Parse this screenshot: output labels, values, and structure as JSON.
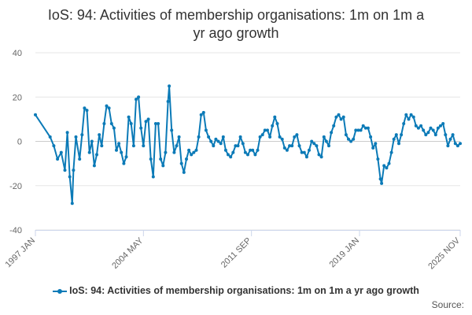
{
  "chart_data": {
    "type": "line",
    "title_lines": [
      "IoS: 94: Activities of membership organisations: 1m on 1m a",
      "yr ago growth"
    ],
    "ylim": [
      -40,
      40
    ],
    "yticks": [
      -40,
      -20,
      0,
      20,
      40
    ],
    "xrange": [
      "1997-01",
      "2025-11"
    ],
    "xticks": [
      {
        "label": "1997 JAN",
        "x": "1997-01"
      },
      {
        "label": "2004 MAY",
        "x": "2004-05"
      },
      {
        "label": "2011 SEP",
        "x": "2011-09"
      },
      {
        "label": "2019 JAN",
        "x": "2019-01"
      },
      {
        "label": "2025 NOV",
        "x": "2025-11"
      }
    ],
    "grid": true,
    "legend_position": "bottom",
    "series": [
      {
        "name": "IoS: 94: Activities of membership organisations: 1m on 1m a yr ago growth",
        "color": "#0b7ab7",
        "points": [
          [
            "1997-01",
            12
          ],
          [
            "1998-01",
            2
          ],
          [
            "1998-04",
            -2
          ],
          [
            "1998-07",
            -8
          ],
          [
            "1998-10",
            -5
          ],
          [
            "1999-01",
            -13
          ],
          [
            "1999-03",
            4
          ],
          [
            "1999-05",
            -16
          ],
          [
            "1999-07",
            -28
          ],
          [
            "1999-08",
            -13
          ],
          [
            "1999-10",
            2
          ],
          [
            "2000-01",
            -8
          ],
          [
            "2000-03",
            3
          ],
          [
            "2000-05",
            15
          ],
          [
            "2000-07",
            14
          ],
          [
            "2000-09",
            -5
          ],
          [
            "2000-11",
            0
          ],
          [
            "2001-01",
            -11
          ],
          [
            "2001-03",
            -6
          ],
          [
            "2001-05",
            3
          ],
          [
            "2001-07",
            -2
          ],
          [
            "2001-09",
            8
          ],
          [
            "2001-11",
            16
          ],
          [
            "2002-01",
            15
          ],
          [
            "2002-03",
            8
          ],
          [
            "2002-05",
            6
          ],
          [
            "2002-07",
            -4
          ],
          [
            "2002-09",
            -1
          ],
          [
            "2002-11",
            -5
          ],
          [
            "2003-01",
            -10
          ],
          [
            "2003-03",
            -7
          ],
          [
            "2003-05",
            11
          ],
          [
            "2003-07",
            8
          ],
          [
            "2003-09",
            -2
          ],
          [
            "2003-11",
            19
          ],
          [
            "2004-01",
            20
          ],
          [
            "2004-03",
            6
          ],
          [
            "2004-05",
            -2
          ],
          [
            "2004-07",
            9
          ],
          [
            "2004-09",
            10
          ],
          [
            "2004-11",
            -8
          ],
          [
            "2005-01",
            -16
          ],
          [
            "2005-03",
            8
          ],
          [
            "2005-05",
            8
          ],
          [
            "2005-07",
            -8
          ],
          [
            "2005-09",
            -11
          ],
          [
            "2005-11",
            -5
          ],
          [
            "2006-01",
            18
          ],
          [
            "2006-02",
            25
          ],
          [
            "2006-04",
            5
          ],
          [
            "2006-06",
            -5
          ],
          [
            "2006-08",
            -2
          ],
          [
            "2006-10",
            2
          ],
          [
            "2006-12",
            -10
          ],
          [
            "2007-02",
            -14
          ],
          [
            "2007-04",
            -8
          ],
          [
            "2007-06",
            -4
          ],
          [
            "2007-08",
            -6
          ],
          [
            "2007-10",
            -5
          ],
          [
            "2007-12",
            -4
          ],
          [
            "2008-02",
            2
          ],
          [
            "2008-04",
            12
          ],
          [
            "2008-06",
            13
          ],
          [
            "2008-08",
            5
          ],
          [
            "2008-10",
            2
          ],
          [
            "2008-12",
            0
          ],
          [
            "2009-02",
            -2
          ],
          [
            "2009-04",
            1
          ],
          [
            "2009-06",
            0
          ],
          [
            "2009-08",
            -1
          ],
          [
            "2009-10",
            2
          ],
          [
            "2009-12",
            -4
          ],
          [
            "2010-02",
            -6
          ],
          [
            "2010-04",
            -7
          ],
          [
            "2010-06",
            -5
          ],
          [
            "2010-08",
            -2
          ],
          [
            "2010-10",
            -2
          ],
          [
            "2010-12",
            2
          ],
          [
            "2011-02",
            -1
          ],
          [
            "2011-04",
            -5
          ],
          [
            "2011-06",
            -6
          ],
          [
            "2011-08",
            -4
          ],
          [
            "2011-10",
            -4
          ],
          [
            "2011-12",
            -6
          ],
          [
            "2012-02",
            -4
          ],
          [
            "2012-04",
            2
          ],
          [
            "2012-06",
            3
          ],
          [
            "2012-08",
            5
          ],
          [
            "2012-10",
            5
          ],
          [
            "2012-12",
            2
          ],
          [
            "2013-02",
            7
          ],
          [
            "2013-04",
            11
          ],
          [
            "2013-06",
            8
          ],
          [
            "2013-08",
            2
          ],
          [
            "2013-10",
            1
          ],
          [
            "2013-12",
            -3
          ],
          [
            "2014-02",
            -4
          ],
          [
            "2014-04",
            -2
          ],
          [
            "2014-06",
            -2
          ],
          [
            "2014-08",
            2
          ],
          [
            "2014-10",
            3
          ],
          [
            "2014-12",
            -2
          ],
          [
            "2015-02",
            -5
          ],
          [
            "2015-04",
            -5
          ],
          [
            "2015-06",
            -7
          ],
          [
            "2015-08",
            -4
          ],
          [
            "2015-10",
            0
          ],
          [
            "2015-12",
            -1
          ],
          [
            "2016-02",
            -2
          ],
          [
            "2016-04",
            -6
          ],
          [
            "2016-06",
            -7
          ],
          [
            "2016-08",
            2
          ],
          [
            "2016-10",
            0
          ],
          [
            "2016-12",
            -2
          ],
          [
            "2017-02",
            4
          ],
          [
            "2017-04",
            7
          ],
          [
            "2017-06",
            11
          ],
          [
            "2017-08",
            12
          ],
          [
            "2017-10",
            10
          ],
          [
            "2017-12",
            11
          ],
          [
            "2018-02",
            3
          ],
          [
            "2018-04",
            1
          ],
          [
            "2018-06",
            0
          ],
          [
            "2018-08",
            1
          ],
          [
            "2018-10",
            5
          ],
          [
            "2018-12",
            5
          ],
          [
            "2019-02",
            5
          ],
          [
            "2019-04",
            7
          ],
          [
            "2019-06",
            6
          ],
          [
            "2019-08",
            6
          ],
          [
            "2019-10",
            2
          ],
          [
            "2019-12",
            -3
          ],
          [
            "2020-02",
            -1
          ],
          [
            "2020-04",
            -8
          ],
          [
            "2020-06",
            -17
          ],
          [
            "2020-07",
            -19
          ],
          [
            "2020-09",
            -11
          ],
          [
            "2020-11",
            -12
          ],
          [
            "2021-01",
            -10
          ],
          [
            "2021-03",
            -5
          ],
          [
            "2021-05",
            1
          ],
          [
            "2021-07",
            3
          ],
          [
            "2021-09",
            -1
          ],
          [
            "2021-11",
            3
          ],
          [
            "2022-01",
            8
          ],
          [
            "2022-03",
            12
          ],
          [
            "2022-05",
            10
          ],
          [
            "2022-07",
            12
          ],
          [
            "2022-09",
            11
          ],
          [
            "2022-11",
            7
          ],
          [
            "2023-01",
            6
          ],
          [
            "2023-03",
            7
          ],
          [
            "2023-05",
            5
          ],
          [
            "2023-07",
            3
          ],
          [
            "2023-09",
            4
          ],
          [
            "2023-11",
            6
          ],
          [
            "2024-01",
            5
          ],
          [
            "2024-03",
            3
          ],
          [
            "2024-05",
            6
          ],
          [
            "2024-07",
            7
          ],
          [
            "2024-09",
            8
          ],
          [
            "2024-11",
            3
          ],
          [
            "2025-01",
            -2
          ],
          [
            "2025-03",
            1
          ],
          [
            "2025-05",
            3
          ],
          [
            "2025-07",
            -1
          ],
          [
            "2025-09",
            -2
          ],
          [
            "2025-11",
            -1
          ]
        ]
      }
    ]
  },
  "legend_label": "IoS: 94: Activities of membership organisations: 1m on 1m a yr ago growth",
  "source_label": "Source:"
}
